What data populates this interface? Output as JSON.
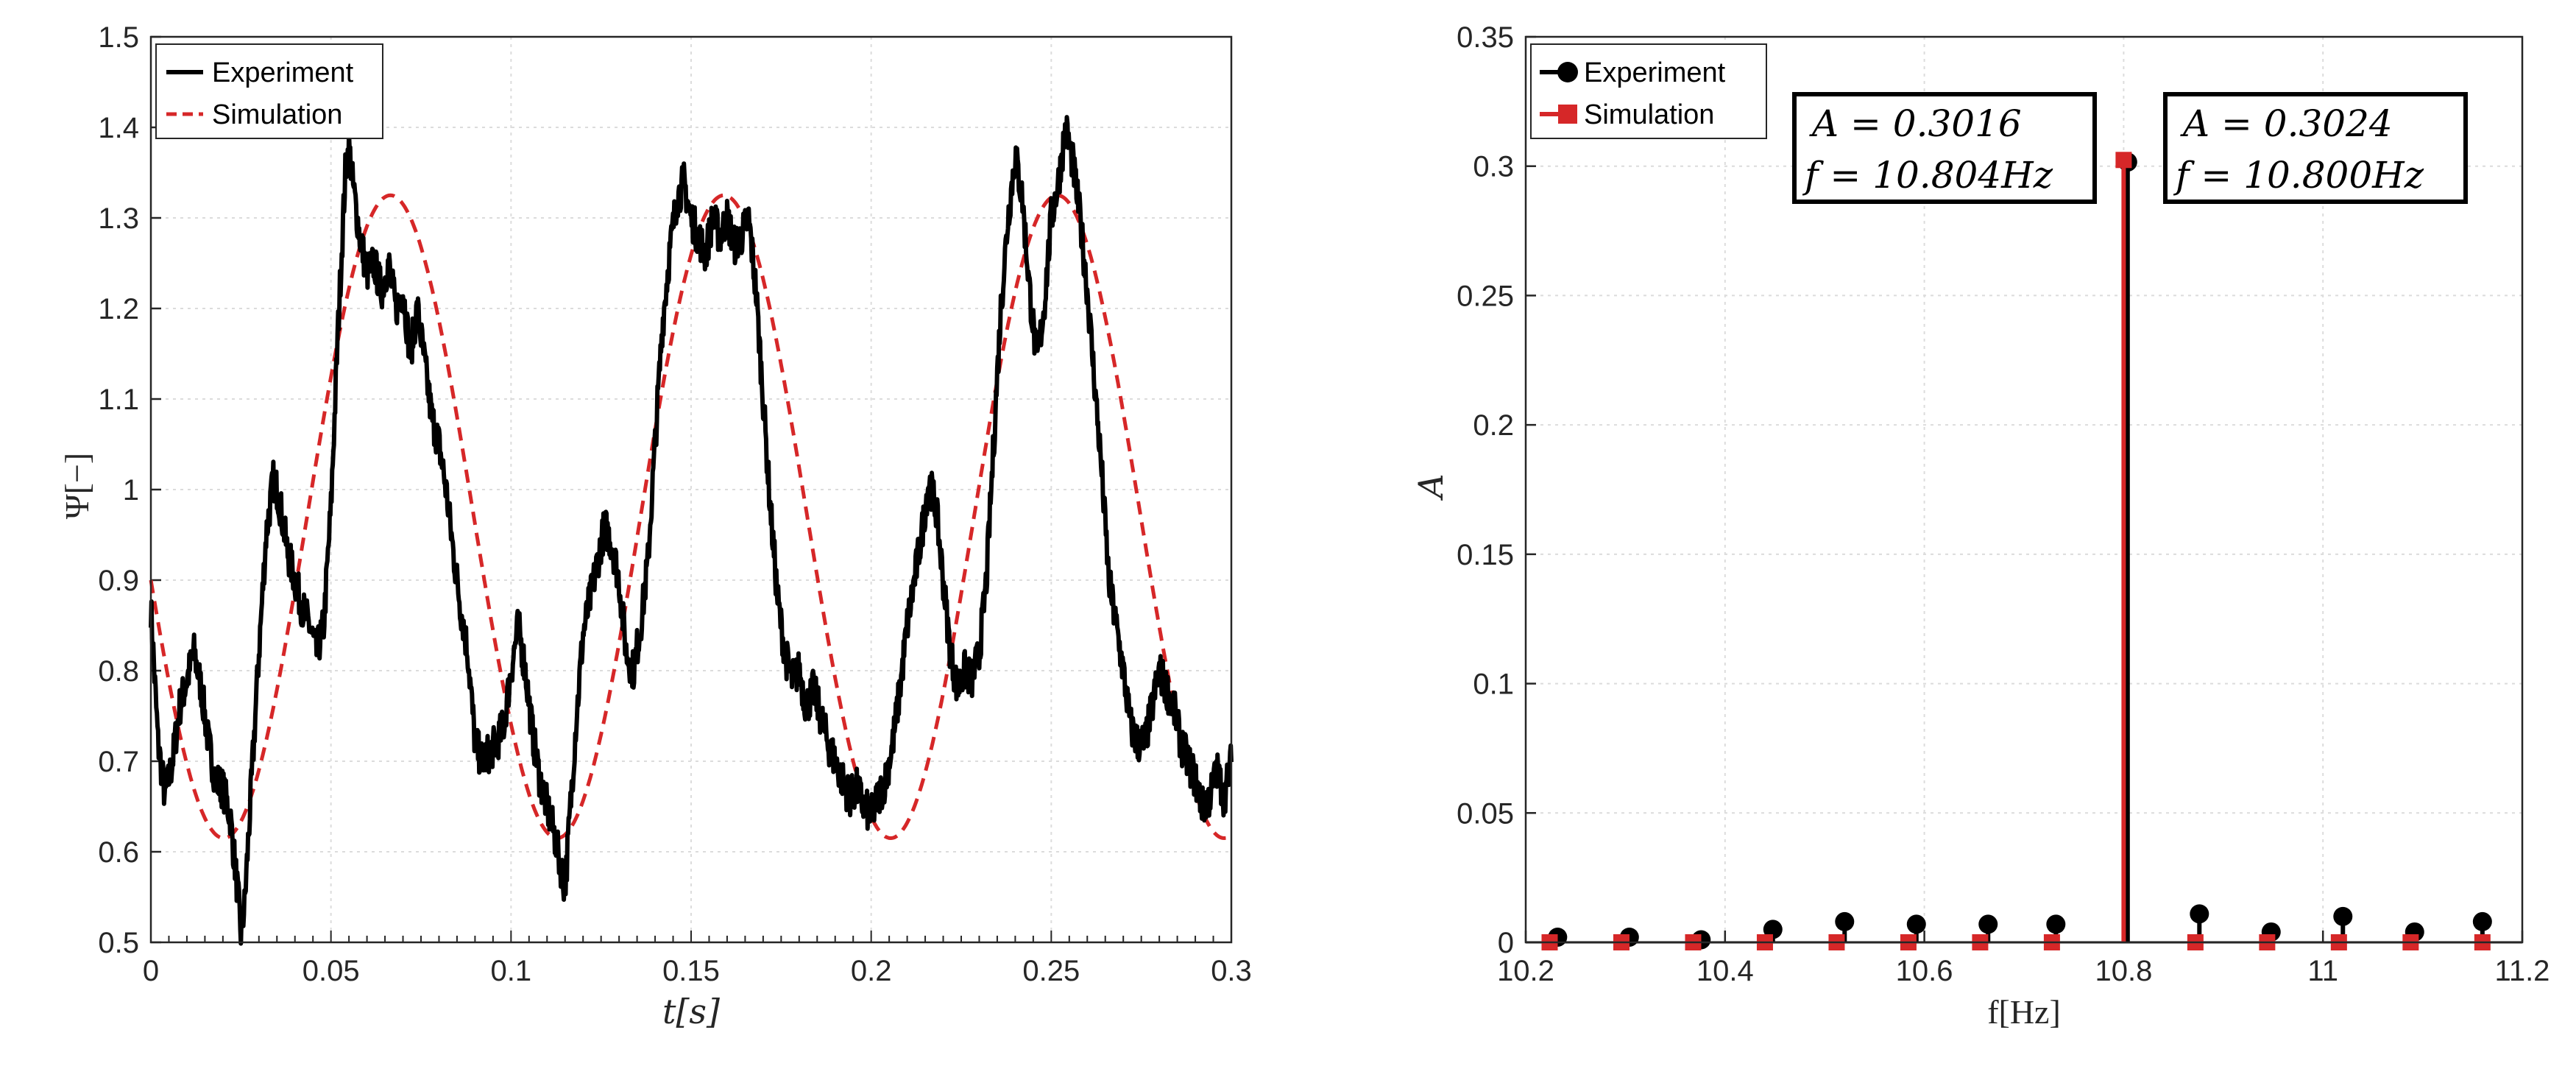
{
  "chart_data": [
    {
      "type": "line",
      "ylabel": "Ψ[−]",
      "xlabel": "t[s]",
      "xlim": [
        0,
        0.3
      ],
      "ylim": [
        0.5,
        1.5
      ],
      "xticks": [
        "0",
        "0.05",
        "0.1",
        "0.15",
        "0.2",
        "0.25",
        "0.3"
      ],
      "yticks": [
        "0.5",
        "0.6",
        "0.7",
        "0.8",
        "0.9",
        "1",
        "1.1",
        "1.2",
        "1.3",
        "1.4",
        "1.5"
      ],
      "grid": true,
      "legend_position": "top-left",
      "series": [
        {
          "name": "Experiment",
          "color": "#000000",
          "style": "solid",
          "x": [
            0,
            0.002,
            0.004,
            0.006,
            0.008,
            0.01,
            0.012,
            0.014,
            0.016,
            0.018,
            0.02,
            0.022,
            0.024,
            0.025,
            0.026,
            0.028,
            0.03,
            0.032,
            0.034,
            0.035,
            0.036,
            0.038,
            0.04,
            0.042,
            0.044,
            0.046,
            0.048,
            0.05,
            0.052,
            0.054,
            0.055,
            0.056,
            0.058,
            0.06,
            0.062,
            0.064,
            0.066,
            0.068,
            0.07,
            0.072,
            0.074,
            0.076,
            0.078,
            0.08,
            0.082,
            0.084,
            0.086,
            0.088,
            0.09,
            0.092,
            0.094,
            0.096,
            0.098,
            0.1,
            0.102,
            0.104,
            0.106,
            0.108,
            0.11,
            0.112,
            0.114,
            0.115,
            0.116,
            0.118,
            0.12,
            0.122,
            0.124,
            0.126,
            0.128,
            0.13,
            0.132,
            0.134,
            0.136,
            0.138,
            0.14,
            0.142,
            0.144,
            0.146,
            0.148,
            0.15,
            0.152,
            0.154,
            0.156,
            0.158,
            0.16,
            0.162,
            0.164,
            0.166,
            0.168,
            0.17,
            0.172,
            0.174,
            0.176,
            0.178,
            0.18,
            0.182,
            0.184,
            0.186,
            0.188,
            0.19,
            0.192,
            0.194,
            0.196,
            0.198,
            0.2,
            0.202,
            0.204,
            0.206,
            0.208,
            0.21,
            0.212,
            0.214,
            0.216,
            0.218,
            0.22,
            0.222,
            0.224,
            0.226,
            0.228,
            0.23,
            0.232,
            0.234,
            0.236,
            0.238,
            0.24,
            0.242,
            0.244,
            0.246,
            0.248,
            0.25,
            0.252,
            0.254,
            0.256,
            0.258,
            0.26,
            0.262,
            0.264,
            0.266,
            0.268,
            0.27,
            0.272,
            0.274,
            0.276,
            0.278,
            0.28,
            0.282,
            0.284,
            0.286,
            0.288,
            0.29,
            0.292,
            0.294,
            0.296,
            0.298,
            0.3
          ],
          "y": [
            0.87,
            0.72,
            0.66,
            0.7,
            0.76,
            0.79,
            0.82,
            0.78,
            0.72,
            0.68,
            0.67,
            0.64,
            0.56,
            0.51,
            0.54,
            0.68,
            0.82,
            0.95,
            1.01,
            1.0,
            0.98,
            0.93,
            0.9,
            0.87,
            0.85,
            0.82,
            0.85,
            0.98,
            1.18,
            1.35,
            1.38,
            1.34,
            1.28,
            1.24,
            1.25,
            1.22,
            1.25,
            1.2,
            1.22,
            1.15,
            1.2,
            1.14,
            1.08,
            1.05,
            1.0,
            0.93,
            0.87,
            0.82,
            0.72,
            0.7,
            0.71,
            0.72,
            0.74,
            0.8,
            0.85,
            0.8,
            0.73,
            0.68,
            0.65,
            0.62,
            0.58,
            0.56,
            0.62,
            0.74,
            0.84,
            0.88,
            0.92,
            0.96,
            0.94,
            0.9,
            0.82,
            0.8,
            0.85,
            0.92,
            1.05,
            1.18,
            1.26,
            1.32,
            1.34,
            1.3,
            1.28,
            1.26,
            1.3,
            1.28,
            1.3,
            1.27,
            1.28,
            1.3,
            1.22,
            1.1,
            0.98,
            0.88,
            0.82,
            0.79,
            0.8,
            0.76,
            0.78,
            0.75,
            0.72,
            0.7,
            0.68,
            0.66,
            0.67,
            0.65,
            0.64,
            0.66,
            0.68,
            0.72,
            0.78,
            0.85,
            0.9,
            0.95,
            1.01,
            0.98,
            0.9,
            0.82,
            0.78,
            0.8,
            0.79,
            0.82,
            0.9,
            1.05,
            1.2,
            1.3,
            1.37,
            1.32,
            1.22,
            1.14,
            1.2,
            1.3,
            1.34,
            1.4,
            1.36,
            1.3,
            1.22,
            1.12,
            1.02,
            0.9,
            0.85,
            0.8,
            0.74,
            0.72,
            0.72,
            0.76,
            0.8,
            0.78,
            0.76,
            0.72,
            0.7,
            0.68,
            0.65,
            0.66,
            0.69,
            0.66,
            0.7
          ]
        },
        {
          "name": "Simulation",
          "color": "#d62728",
          "style": "dashed",
          "model": "sinusoid",
          "mean": 0.97,
          "amplitude": 0.355,
          "frequency_hz": 10.8,
          "initial_value": 0.9
        }
      ]
    },
    {
      "type": "stem",
      "ylabel": "A",
      "xlabel": "f[Hz]",
      "xlim": [
        10.2,
        11.2
      ],
      "ylim": [
        0,
        0.35
      ],
      "xticks": [
        "10.2",
        "10.4",
        "10.6",
        "10.8",
        "11",
        "11.2"
      ],
      "yticks": [
        "0",
        "0.05",
        "0.1",
        "0.15",
        "0.2",
        "0.25",
        "0.3",
        "0.35"
      ],
      "grid": true,
      "legend_position": "top-left",
      "series": [
        {
          "name": "Experiment",
          "color": "#000000",
          "marker": "circle",
          "x": [
            10.232,
            10.304,
            10.376,
            10.448,
            10.52,
            10.592,
            10.664,
            10.732,
            10.804,
            10.876,
            10.948,
            11.02,
            11.092,
            11.16
          ],
          "y": [
            0.002,
            0.002,
            0.001,
            0.005,
            0.008,
            0.007,
            0.007,
            0.007,
            0.3016,
            0.011,
            0.004,
            0.01,
            0.004,
            0.008
          ]
        },
        {
          "name": "Simulation",
          "color": "#d62728",
          "marker": "square",
          "x": [
            10.224,
            10.296,
            10.368,
            10.44,
            10.512,
            10.584,
            10.656,
            10.728,
            10.8,
            10.872,
            10.944,
            11.016,
            11.088,
            11.16
          ],
          "y": [
            0,
            0,
            0,
            0,
            0,
            0,
            0,
            0,
            0.3024,
            0,
            0,
            0,
            0,
            0
          ]
        }
      ],
      "annotations": [
        {
          "line1": "A = 0.3016",
          "line2": "f = 10.804Hz"
        },
        {
          "line1": "A = 0.3024",
          "line2": "f = 10.800Hz"
        }
      ]
    }
  ]
}
